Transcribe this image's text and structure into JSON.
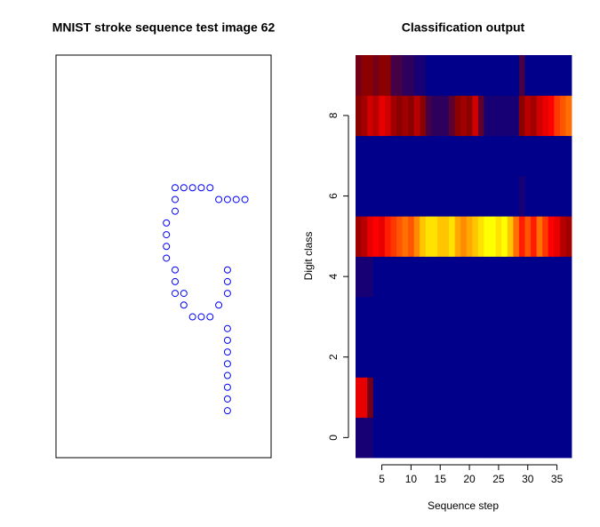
{
  "chart_data": [
    {
      "type": "scatter",
      "title": "MNIST stroke sequence test image 62",
      "color": "#0000ff",
      "x": [
        19,
        18,
        17,
        16,
        15,
        14,
        13,
        12,
        11,
        11,
        11,
        10,
        10,
        10,
        10,
        11,
        11,
        11,
        12,
        12,
        13,
        14,
        15,
        16,
        17,
        17,
        17,
        17,
        17,
        17,
        17,
        17,
        17,
        17,
        17
      ],
      "y": [
        23,
        23,
        23,
        23,
        24,
        24,
        24,
        24,
        24,
        23,
        22,
        21,
        20,
        19,
        18,
        17,
        16,
        15,
        15,
        14,
        13,
        13,
        13,
        14,
        15,
        16,
        17,
        12,
        11,
        10,
        9,
        8,
        7,
        6,
        5
      ],
      "xlim": [
        -2.65,
        22
      ],
      "ylim": [
        1,
        35.3
      ]
    },
    {
      "type": "heatmap",
      "title": "Classification output",
      "x_label": "Sequence step",
      "y_label": "Digit class",
      "x": [
        1,
        2,
        3,
        4,
        5,
        6,
        7,
        8,
        9,
        10,
        11,
        12,
        13,
        14,
        15,
        16,
        17,
        18,
        19,
        20,
        21,
        22,
        23,
        24,
        25,
        26,
        27,
        28,
        29,
        30,
        31,
        32,
        33,
        34,
        35,
        36,
        37
      ],
      "y": [
        0,
        1,
        2,
        3,
        4,
        5,
        6,
        7,
        8,
        9
      ],
      "z": [
        [
          0.05,
          0.05,
          0.05,
          0,
          0,
          0,
          0,
          0,
          0,
          0,
          0,
          0,
          0,
          0,
          0,
          0,
          0,
          0,
          0,
          0,
          0,
          0,
          0,
          0,
          0,
          0,
          0,
          0,
          0,
          0,
          0,
          0,
          0,
          0,
          0,
          0,
          0
        ],
        [
          0.5,
          0.5,
          0.25,
          0,
          0,
          0,
          0,
          0,
          0,
          0,
          0,
          0,
          0,
          0,
          0,
          0,
          0,
          0,
          0,
          0,
          0,
          0,
          0,
          0,
          0,
          0,
          0,
          0,
          0,
          0,
          0,
          0,
          0,
          0,
          0,
          0,
          0
        ],
        [
          0,
          0,
          0,
          0,
          0,
          0,
          0,
          0,
          0,
          0,
          0,
          0,
          0,
          0,
          0,
          0,
          0,
          0,
          0,
          0,
          0,
          0,
          0,
          0,
          0,
          0,
          0,
          0,
          0,
          0,
          0,
          0,
          0,
          0,
          0,
          0,
          0
        ],
        [
          0,
          0,
          0,
          0,
          0,
          0,
          0,
          0,
          0,
          0,
          0,
          0,
          0,
          0,
          0,
          0,
          0,
          0,
          0,
          0,
          0,
          0,
          0,
          0,
          0,
          0,
          0,
          0,
          0,
          0,
          0,
          0,
          0,
          0,
          0,
          0,
          0
        ],
        [
          0.05,
          0.05,
          0.05,
          0,
          0,
          0,
          0,
          0,
          0,
          0,
          0,
          0,
          0,
          0,
          0,
          0,
          0,
          0,
          0,
          0,
          0,
          0,
          0,
          0,
          0,
          0,
          0,
          0,
          0,
          0,
          0,
          0,
          0,
          0,
          0,
          0,
          0
        ],
        [
          0.35,
          0.4,
          0.5,
          0.55,
          0.5,
          0.6,
          0.65,
          0.7,
          0.75,
          0.7,
          0.8,
          0.9,
          0.95,
          0.95,
          0.9,
          0.9,
          0.95,
          0.85,
          0.8,
          0.85,
          0.9,
          0.95,
          1,
          1,
          0.95,
          1,
          0.9,
          0.75,
          0.6,
          0.7,
          0.6,
          0.75,
          0.65,
          0.55,
          0.5,
          0.4,
          0.35
        ],
        [
          0,
          0,
          0,
          0,
          0,
          0,
          0,
          0,
          0,
          0,
          0,
          0,
          0,
          0,
          0,
          0,
          0,
          0,
          0,
          0,
          0,
          0,
          0,
          0,
          0,
          0,
          0,
          0,
          0.05,
          0,
          0,
          0,
          0,
          0,
          0,
          0,
          0
        ],
        [
          0,
          0,
          0,
          0,
          0,
          0,
          0,
          0,
          0,
          0,
          0,
          0,
          0,
          0,
          0,
          0,
          0,
          0,
          0,
          0,
          0,
          0,
          0,
          0,
          0,
          0,
          0,
          0,
          0,
          0,
          0,
          0,
          0,
          0,
          0,
          0,
          0
        ],
        [
          0.3,
          0.35,
          0.45,
          0.4,
          0.5,
          0.45,
          0.35,
          0.3,
          0.35,
          0.3,
          0.4,
          0.3,
          0.15,
          0.1,
          0.1,
          0.1,
          0.2,
          0.3,
          0.35,
          0.3,
          0.45,
          0.2,
          0.05,
          0.05,
          0.05,
          0.05,
          0.05,
          0.05,
          0.3,
          0.4,
          0.35,
          0.45,
          0.5,
          0.55,
          0.65,
          0.7,
          0.75
        ],
        [
          0.25,
          0.3,
          0.3,
          0.25,
          0.3,
          0.3,
          0.15,
          0.15,
          0.1,
          0.1,
          0.05,
          0.05,
          0,
          0,
          0,
          0,
          0,
          0,
          0,
          0,
          0,
          0,
          0,
          0,
          0,
          0,
          0,
          0,
          0.15,
          0,
          0,
          0,
          0,
          0,
          0,
          0,
          0
        ]
      ],
      "colorscale": [
        [
          0,
          "#00008b"
        ],
        [
          0.3,
          "#8b0000"
        ],
        [
          0.55,
          "#ff0000"
        ],
        [
          0.8,
          "#ff8c00"
        ],
        [
          1,
          "#ffff00"
        ]
      ],
      "xlim": [
        0.5,
        37.5
      ],
      "ylim": [
        -0.5,
        9.5
      ],
      "xticks": [
        5,
        10,
        15,
        20,
        25,
        30,
        35
      ],
      "yticks": [
        0,
        2,
        4,
        6,
        8
      ]
    }
  ]
}
